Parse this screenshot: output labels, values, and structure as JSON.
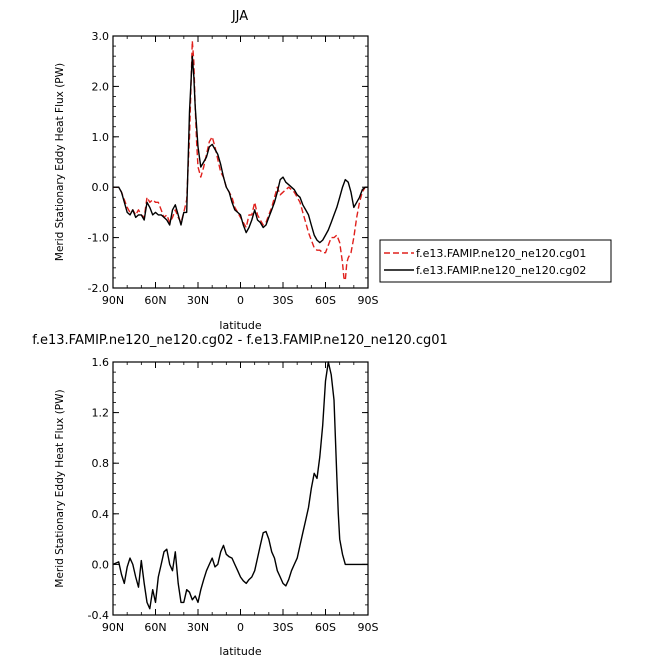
{
  "chart_data": [
    {
      "type": "line",
      "title": "JJA",
      "xlabel": "latitude",
      "ylabel": "Merid Stationary Eddy Heat Flux (PW)",
      "xlim": [
        90,
        -90
      ],
      "ylim": [
        -2.0,
        3.0
      ],
      "x_ticks": [
        90,
        60,
        30,
        0,
        -30,
        -60,
        -90
      ],
      "x_tick_labels": [
        "90N",
        "60N",
        "30N",
        "0",
        "30S",
        "60S",
        "90S"
      ],
      "y_ticks": [
        -2.0,
        -1.0,
        0.0,
        1.0,
        2.0,
        3.0
      ],
      "y_tick_labels": [
        "-2.0",
        "-1.0",
        "0.0",
        "1.0",
        "2.0",
        "3.0"
      ],
      "grid": false,
      "legend_position": "right",
      "series": [
        {
          "name": "f.e13.FAMIP.ne120_ne120.cg01",
          "color": "#e0201c",
          "dash": "dashed",
          "x": [
            90,
            86,
            84,
            80,
            78,
            76,
            74,
            72,
            70,
            68,
            66,
            64,
            62,
            60,
            58,
            56,
            54,
            52,
            50,
            48,
            46,
            44,
            42,
            40,
            38,
            36,
            34,
            33,
            32,
            31,
            30,
            28,
            26,
            24,
            22,
            20,
            18,
            16,
            14,
            12,
            10,
            8,
            6,
            4,
            2,
            0,
            -2,
            -4,
            -6,
            -8,
            -10,
            -12,
            -14,
            -16,
            -18,
            -20,
            -22,
            -24,
            -26,
            -28,
            -30,
            -32,
            -34,
            -36,
            -38,
            -40,
            -42,
            -44,
            -46,
            -48,
            -50,
            -52,
            -54,
            -56,
            -58,
            -60,
            -62,
            -64,
            -66,
            -68,
            -70,
            -72,
            -73,
            -74,
            -75,
            -76,
            -78,
            -80,
            -82,
            -84,
            -86,
            -88,
            -90
          ],
          "y": [
            0.0,
            0.0,
            -0.1,
            -0.4,
            -0.5,
            -0.45,
            -0.55,
            -0.45,
            -0.55,
            -0.6,
            -0.2,
            -0.3,
            -0.25,
            -0.3,
            -0.3,
            -0.45,
            -0.6,
            -0.55,
            -0.7,
            -0.6,
            -0.45,
            -0.6,
            -0.7,
            -0.5,
            -0.25,
            1.0,
            2.9,
            2.5,
            1.6,
            0.9,
            0.4,
            0.2,
            0.4,
            0.65,
            0.9,
            1.0,
            0.8,
            0.55,
            0.3,
            0.2,
            0.0,
            -0.1,
            -0.2,
            -0.4,
            -0.5,
            -0.6,
            -0.7,
            -0.8,
            -0.55,
            -0.55,
            -0.3,
            -0.55,
            -0.65,
            -0.75,
            -0.7,
            -0.55,
            -0.4,
            -0.2,
            0.0,
            -0.15,
            -0.1,
            -0.05,
            0.0,
            -0.05,
            -0.1,
            -0.2,
            -0.3,
            -0.5,
            -0.7,
            -0.9,
            -1.05,
            -1.2,
            -1.25,
            -1.25,
            -1.3,
            -1.3,
            -1.15,
            -1.0,
            -1.0,
            -0.95,
            -1.1,
            -1.5,
            -1.8,
            -1.85,
            -1.5,
            -1.4,
            -1.3,
            -1.0,
            -0.6,
            -0.3,
            -0.1,
            0.0,
            0.0
          ]
        },
        {
          "name": "f.e13.FAMIP.ne120_ne120.cg02",
          "color": "#000000",
          "dash": "solid",
          "x": [
            90,
            86,
            84,
            80,
            78,
            76,
            74,
            72,
            70,
            68,
            66,
            64,
            62,
            60,
            58,
            56,
            54,
            52,
            50,
            48,
            46,
            44,
            42,
            40,
            38,
            36,
            34,
            33,
            32,
            31,
            30,
            28,
            26,
            24,
            22,
            20,
            18,
            16,
            14,
            12,
            10,
            8,
            6,
            4,
            2,
            0,
            -2,
            -4,
            -6,
            -8,
            -10,
            -12,
            -14,
            -16,
            -18,
            -20,
            -22,
            -24,
            -26,
            -28,
            -30,
            -32,
            -34,
            -36,
            -38,
            -40,
            -42,
            -44,
            -46,
            -48,
            -50,
            -52,
            -54,
            -56,
            -58,
            -60,
            -62,
            -64,
            -66,
            -68,
            -70,
            -72,
            -74,
            -76,
            -78,
            -80,
            -82,
            -84,
            -86,
            -88,
            -90
          ],
          "y": [
            0.0,
            0.0,
            -0.1,
            -0.5,
            -0.55,
            -0.45,
            -0.6,
            -0.55,
            -0.55,
            -0.65,
            -0.3,
            -0.4,
            -0.55,
            -0.5,
            -0.55,
            -0.55,
            -0.6,
            -0.65,
            -0.75,
            -0.45,
            -0.35,
            -0.55,
            -0.75,
            -0.5,
            -0.5,
            1.5,
            2.6,
            2.2,
            1.6,
            1.2,
            0.8,
            0.4,
            0.5,
            0.6,
            0.8,
            0.85,
            0.75,
            0.65,
            0.45,
            0.2,
            0.0,
            -0.1,
            -0.3,
            -0.45,
            -0.5,
            -0.55,
            -0.75,
            -0.9,
            -0.8,
            -0.65,
            -0.45,
            -0.65,
            -0.7,
            -0.8,
            -0.75,
            -0.6,
            -0.45,
            -0.3,
            -0.1,
            0.15,
            0.2,
            0.1,
            0.05,
            0.0,
            -0.05,
            -0.15,
            -0.2,
            -0.35,
            -0.45,
            -0.55,
            -0.75,
            -0.95,
            -1.05,
            -1.1,
            -1.05,
            -0.95,
            -0.85,
            -0.7,
            -0.55,
            -0.4,
            -0.2,
            0.0,
            0.15,
            0.1,
            -0.1,
            -0.4,
            -0.3,
            -0.2,
            -0.05,
            0.0,
            0.0
          ]
        }
      ]
    },
    {
      "type": "line",
      "title": "f.e13.FAMIP.ne120_ne120.cg02 - f.e13.FAMIP.ne120_ne120.cg01",
      "xlabel": "latitude",
      "ylabel": "Merid Stationary Eddy Heat Flux (PW)",
      "xlim": [
        90,
        -90
      ],
      "ylim": [
        -0.4,
        1.6
      ],
      "x_ticks": [
        90,
        60,
        30,
        0,
        -30,
        -60,
        -90
      ],
      "x_tick_labels": [
        "90N",
        "60N",
        "30N",
        "0",
        "30S",
        "60S",
        "90S"
      ],
      "y_ticks": [
        -0.4,
        0.0,
        0.4,
        0.8,
        1.2,
        1.6
      ],
      "y_tick_labels": [
        "-0.4",
        "0.0",
        "0.4",
        "0.8",
        "1.2",
        "1.6"
      ],
      "grid": false,
      "series": [
        {
          "color": "#000000",
          "dash": "solid",
          "x": [
            90,
            86,
            84,
            82,
            80,
            78,
            76,
            74,
            72,
            70,
            68,
            66,
            64,
            62,
            60,
            58,
            56,
            54,
            52,
            50,
            48,
            46,
            44,
            42,
            40,
            38,
            36,
            34,
            32,
            30,
            28,
            26,
            24,
            22,
            20,
            18,
            16,
            14,
            12,
            10,
            8,
            6,
            4,
            2,
            0,
            -2,
            -4,
            -6,
            -8,
            -10,
            -12,
            -14,
            -16,
            -18,
            -20,
            -22,
            -24,
            -26,
            -28,
            -30,
            -32,
            -34,
            -36,
            -38,
            -40,
            -42,
            -44,
            -46,
            -48,
            -50,
            -52,
            -54,
            -56,
            -58,
            -60,
            -62,
            -64,
            -66,
            -67,
            -68,
            -69,
            -70,
            -72,
            -74,
            -75,
            -76,
            -78,
            -80,
            -82,
            -84,
            -86,
            -88,
            -90
          ],
          "y": [
            0.0,
            0.02,
            -0.08,
            -0.15,
            -0.02,
            0.05,
            0.0,
            -0.1,
            -0.18,
            0.03,
            -0.15,
            -0.3,
            -0.35,
            -0.2,
            -0.3,
            -0.1,
            0.0,
            0.1,
            0.12,
            0.0,
            -0.05,
            0.1,
            -0.15,
            -0.3,
            -0.3,
            -0.2,
            -0.22,
            -0.28,
            -0.25,
            -0.3,
            -0.2,
            -0.12,
            -0.05,
            0.0,
            0.05,
            -0.02,
            0.0,
            0.1,
            0.15,
            0.08,
            0.06,
            0.05,
            0.0,
            -0.05,
            -0.1,
            -0.13,
            -0.15,
            -0.12,
            -0.1,
            -0.05,
            0.05,
            0.15,
            0.25,
            0.26,
            0.2,
            0.1,
            0.05,
            -0.05,
            -0.1,
            -0.15,
            -0.17,
            -0.12,
            -0.05,
            0.0,
            0.05,
            0.15,
            0.25,
            0.35,
            0.45,
            0.6,
            0.72,
            0.68,
            0.85,
            1.1,
            1.45,
            1.6,
            1.5,
            1.3,
            1.0,
            0.7,
            0.4,
            0.2,
            0.08,
            0.0,
            0.0,
            0.0,
            0.0,
            0.0,
            0.0,
            0.0,
            0.0,
            0.0,
            0.0
          ]
        }
      ]
    }
  ]
}
